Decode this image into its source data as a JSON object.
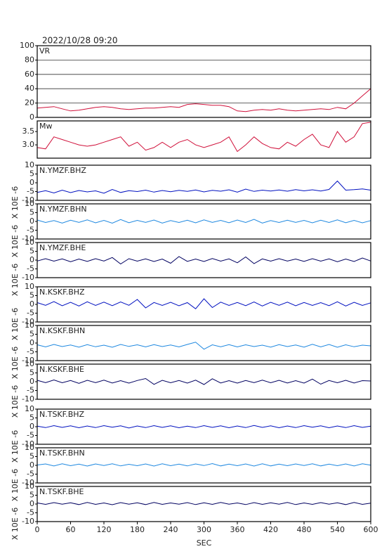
{
  "chart_data": [
    {
      "type": "line",
      "title": "2022/10/28 09:20",
      "xlim": [
        0,
        600
      ],
      "ylim": [
        0,
        100
      ],
      "yticks": [
        0,
        20,
        40,
        60,
        80,
        100
      ],
      "grid": true,
      "x": [
        0,
        15,
        30,
        45,
        60,
        75,
        90,
        105,
        120,
        135,
        150,
        165,
        180,
        195,
        210,
        225,
        240,
        255,
        270,
        285,
        300,
        315,
        330,
        345,
        360,
        375,
        390,
        405,
        420,
        435,
        450,
        465,
        480,
        495,
        510,
        525,
        540,
        555,
        570,
        585,
        600
      ],
      "series": [
        {
          "name": "VR",
          "color": "#d0103a",
          "values": [
            13,
            14,
            15,
            12,
            9,
            10,
            12,
            14,
            15,
            14,
            12,
            11,
            12,
            13,
            13,
            14,
            15,
            14,
            18,
            19,
            18,
            17,
            17,
            15,
            9,
            8,
            10,
            11,
            10,
            12,
            10,
            9,
            10,
            11,
            12,
            11,
            14,
            12,
            20,
            30,
            40
          ]
        }
      ]
    },
    {
      "type": "line",
      "xlim": [
        0,
        600
      ],
      "ylim": [
        2.5,
        3.9
      ],
      "yticks": [
        {
          "value": 3,
          "label": "3.0"
        },
        3.5
      ],
      "grid": false,
      "x": [
        0,
        15,
        30,
        45,
        60,
        75,
        90,
        105,
        120,
        135,
        150,
        165,
        180,
        195,
        210,
        225,
        240,
        255,
        270,
        285,
        300,
        315,
        330,
        345,
        360,
        375,
        390,
        405,
        420,
        435,
        450,
        465,
        480,
        495,
        510,
        525,
        540,
        555,
        570,
        585,
        600
      ],
      "series": [
        {
          "name": "Mw",
          "color": "#d0103a",
          "values": [
            2.9,
            2.85,
            3.3,
            3.2,
            3.1,
            3.0,
            2.95,
            3.0,
            3.1,
            3.2,
            3.3,
            2.95,
            3.1,
            2.8,
            2.9,
            3.1,
            2.9,
            3.1,
            3.2,
            3.0,
            2.9,
            3.0,
            3.1,
            3.3,
            2.75,
            3.0,
            3.3,
            3.05,
            2.9,
            2.85,
            3.1,
            2.95,
            3.2,
            3.4,
            3.0,
            2.9,
            3.5,
            3.1,
            3.3,
            3.8,
            3.85
          ]
        }
      ]
    },
    {
      "type": "line",
      "ylabel": "X 10E -6",
      "xlim": [
        0,
        600
      ],
      "ylim": [
        -10,
        10
      ],
      "yticks": [
        -10,
        -5,
        0,
        5,
        10
      ],
      "grid": false,
      "x": [
        0,
        15,
        30,
        45,
        60,
        75,
        90,
        105,
        120,
        135,
        150,
        165,
        180,
        195,
        210,
        225,
        240,
        255,
        270,
        285,
        300,
        315,
        330,
        345,
        360,
        375,
        390,
        405,
        420,
        435,
        450,
        465,
        480,
        495,
        510,
        525,
        540,
        555,
        570,
        585,
        600
      ],
      "series": [
        {
          "name": "N.YMZF.BHZ",
          "color": "#0010c0",
          "values": [
            -5.5,
            -4.5,
            -5.8,
            -4.2,
            -5.6,
            -4.4,
            -5.2,
            -4.6,
            -5.9,
            -3.8,
            -5.5,
            -4.5,
            -5.0,
            -4.2,
            -5.3,
            -4.4,
            -5.1,
            -4.3,
            -4.9,
            -4.1,
            -5.2,
            -4.3,
            -4.8,
            -4.0,
            -5.3,
            -3.6,
            -4.9,
            -4.2,
            -4.7,
            -4.1,
            -4.8,
            -3.9,
            -4.6,
            -4.0,
            -4.7,
            -3.8,
            1.0,
            -4.2,
            -3.9,
            -3.5,
            -4.2
          ]
        }
      ]
    },
    {
      "type": "line",
      "ylabel": "X 10E -6",
      "xlim": [
        0,
        600
      ],
      "ylim": [
        -10,
        10
      ],
      "yticks": [
        -10,
        -5,
        0,
        5,
        10
      ],
      "grid": false,
      "x": [
        0,
        15,
        30,
        45,
        60,
        75,
        90,
        105,
        120,
        135,
        150,
        165,
        180,
        195,
        210,
        225,
        240,
        255,
        270,
        285,
        300,
        315,
        330,
        345,
        360,
        375,
        390,
        405,
        420,
        435,
        450,
        465,
        480,
        495,
        510,
        525,
        540,
        555,
        570,
        585,
        600
      ],
      "series": [
        {
          "name": "N.YMZF.BHN",
          "color": "#1e88e0",
          "values": [
            0.8,
            -0.6,
            0.5,
            -0.9,
            0.7,
            -0.5,
            0.9,
            -0.8,
            0.6,
            -1.0,
            1.1,
            -0.7,
            0.6,
            -0.5,
            0.8,
            -0.9,
            0.5,
            -0.6,
            0.7,
            -0.8,
            0.9,
            -0.5,
            0.6,
            -0.7,
            0.8,
            -0.6,
            1.2,
            -0.9,
            0.5,
            -0.6,
            0.7,
            -0.5,
            0.6,
            -0.8,
            0.7,
            -0.6,
            0.9,
            -0.7,
            0.6,
            -0.8,
            0.5
          ]
        }
      ]
    },
    {
      "type": "line",
      "ylabel": "X 10E -6",
      "xlim": [
        0,
        600
      ],
      "ylim": [
        -10,
        10
      ],
      "yticks": [
        -10,
        -5,
        0,
        5,
        10
      ],
      "grid": false,
      "x": [
        0,
        15,
        30,
        45,
        60,
        75,
        90,
        105,
        120,
        135,
        150,
        165,
        180,
        195,
        210,
        225,
        240,
        255,
        270,
        285,
        300,
        315,
        330,
        345,
        360,
        375,
        390,
        405,
        420,
        435,
        450,
        465,
        480,
        495,
        510,
        525,
        540,
        555,
        570,
        585,
        600
      ],
      "series": [
        {
          "name": "N.YMZF.BHE",
          "color": "#000060",
          "values": [
            -0.5,
            0.8,
            -0.6,
            0.7,
            -0.9,
            0.6,
            -0.7,
            0.8,
            -0.5,
            1.5,
            -2.2,
            0.8,
            -0.6,
            0.7,
            -0.8,
            0.6,
            -1.8,
            2.0,
            -0.7,
            0.6,
            -0.8,
            0.9,
            -0.6,
            0.7,
            -1.5,
            1.8,
            -2.0,
            0.7,
            -0.6,
            0.8,
            -0.5,
            0.6,
            -0.7,
            0.8,
            -0.6,
            0.7,
            -0.9,
            0.6,
            -0.8,
            1.2,
            -0.5
          ]
        }
      ]
    },
    {
      "type": "line",
      "ylabel": "X 10E -6",
      "xlim": [
        0,
        600
      ],
      "ylim": [
        -10,
        10
      ],
      "yticks": [
        -10,
        -5,
        0,
        5,
        10
      ],
      "grid": false,
      "x": [
        0,
        15,
        30,
        45,
        60,
        75,
        90,
        105,
        120,
        135,
        150,
        165,
        180,
        195,
        210,
        225,
        240,
        255,
        270,
        285,
        300,
        315,
        330,
        345,
        360,
        375,
        390,
        405,
        420,
        435,
        450,
        465,
        480,
        495,
        510,
        525,
        540,
        555,
        570,
        585,
        600
      ],
      "series": [
        {
          "name": "N.KSKF.BHZ",
          "color": "#0010c0",
          "values": [
            1.0,
            -0.5,
            1.6,
            -0.8,
            1.2,
            -0.9,
            1.5,
            -0.6,
            1.3,
            -0.7,
            1.4,
            -0.5,
            2.8,
            -2.0,
            1.1,
            -0.6,
            1.2,
            -0.8,
            1.0,
            -2.5,
            3.2,
            -1.8,
            1.3,
            -0.6,
            1.1,
            -0.7,
            1.4,
            -0.9,
            1.2,
            -0.5,
            1.3,
            -0.8,
            1.1,
            -0.6,
            1.0,
            -0.7,
            1.5,
            -0.9,
            1.2,
            -0.6,
            0.9
          ]
        }
      ]
    },
    {
      "type": "line",
      "ylabel": "X 10E -6",
      "xlim": [
        0,
        600
      ],
      "ylim": [
        -10,
        10
      ],
      "yticks": [
        -10,
        -5,
        0,
        5,
        10
      ],
      "grid": false,
      "x": [
        0,
        15,
        30,
        45,
        60,
        75,
        90,
        105,
        120,
        135,
        150,
        165,
        180,
        195,
        210,
        225,
        240,
        255,
        270,
        285,
        300,
        315,
        330,
        345,
        360,
        375,
        390,
        405,
        420,
        435,
        450,
        465,
        480,
        495,
        510,
        525,
        540,
        555,
        570,
        585,
        600
      ],
      "series": [
        {
          "name": "N.KSKF.BHN",
          "color": "#1e88e0",
          "values": [
            -1.0,
            -2.2,
            -0.8,
            -2.0,
            -1.1,
            -2.3,
            -0.9,
            -2.1,
            -1.2,
            -2.4,
            -0.8,
            -1.9,
            -1.0,
            -2.2,
            -0.9,
            -2.0,
            -1.1,
            -2.2,
            -0.8,
            0.5,
            -3.5,
            -1.0,
            -2.1,
            -0.9,
            -2.2,
            -1.0,
            -2.0,
            -1.2,
            -2.3,
            -0.9,
            -2.0,
            -1.1,
            -2.3,
            -0.7,
            -2.2,
            -0.8,
            -2.4,
            -1.0,
            -2.1,
            -1.2,
            -1.6
          ]
        }
      ]
    },
    {
      "type": "line",
      "ylabel": "X 10E -6",
      "xlim": [
        0,
        600
      ],
      "ylim": [
        -10,
        10
      ],
      "yticks": [
        -10,
        -5,
        0,
        5,
        10
      ],
      "grid": false,
      "x": [
        0,
        15,
        30,
        45,
        60,
        75,
        90,
        105,
        120,
        135,
        150,
        165,
        180,
        195,
        210,
        225,
        240,
        255,
        270,
        285,
        300,
        315,
        330,
        345,
        360,
        375,
        390,
        405,
        420,
        435,
        450,
        465,
        480,
        495,
        510,
        525,
        540,
        555,
        570,
        585,
        600
      ],
      "series": [
        {
          "name": "N.KSKF.BHE",
          "color": "#000060",
          "values": [
            0.8,
            -0.5,
            1.0,
            -0.6,
            0.7,
            -0.9,
            0.8,
            -0.5,
            0.9,
            -0.7,
            0.6,
            -0.8,
            0.7,
            1.8,
            -1.5,
            0.8,
            -0.6,
            0.7,
            -0.8,
            0.9,
            -1.6,
            1.7,
            -0.7,
            0.6,
            -0.8,
            0.7,
            -0.5,
            0.9,
            -0.6,
            0.8,
            -0.7,
            0.6,
            -0.8,
            1.5,
            -1.4,
            0.7,
            -0.6,
            0.8,
            -0.7,
            0.6,
            0.4
          ]
        }
      ]
    },
    {
      "type": "line",
      "ylabel": "X 10E -6",
      "xlim": [
        0,
        600
      ],
      "ylim": [
        -10,
        10
      ],
      "yticks": [
        -10,
        -5,
        0,
        5,
        10
      ],
      "grid": false,
      "x": [
        0,
        15,
        30,
        45,
        60,
        75,
        90,
        105,
        120,
        135,
        150,
        165,
        180,
        195,
        210,
        225,
        240,
        255,
        270,
        285,
        300,
        315,
        330,
        345,
        360,
        375,
        390,
        405,
        420,
        435,
        450,
        465,
        480,
        495,
        510,
        525,
        540,
        555,
        570,
        585,
        600
      ],
      "series": [
        {
          "name": "N.TSKF.BHZ",
          "color": "#0010c0",
          "values": [
            0.3,
            -0.5,
            0.6,
            -0.4,
            0.5,
            -0.6,
            0.4,
            -0.5,
            0.6,
            -0.3,
            0.5,
            -0.7,
            0.4,
            -0.5,
            0.6,
            -0.4,
            0.5,
            -0.6,
            0.3,
            -0.5,
            0.6,
            -0.4,
            0.5,
            -0.6,
            0.4,
            -0.5,
            0.7,
            -0.4,
            0.5,
            -0.6,
            0.4,
            -0.5,
            0.6,
            -0.3,
            0.5,
            -0.6,
            0.4,
            -0.5,
            0.6,
            -0.4,
            0.3
          ]
        }
      ]
    },
    {
      "type": "line",
      "ylabel": "X 10E -6",
      "xlim": [
        0,
        600
      ],
      "ylim": [
        -10,
        10
      ],
      "yticks": [
        -10,
        -5,
        0,
        5,
        10
      ],
      "grid": false,
      "x": [
        0,
        15,
        30,
        45,
        60,
        75,
        90,
        105,
        120,
        135,
        150,
        165,
        180,
        195,
        210,
        225,
        240,
        255,
        270,
        285,
        300,
        315,
        330,
        345,
        360,
        375,
        390,
        405,
        420,
        435,
        450,
        465,
        480,
        495,
        510,
        525,
        540,
        555,
        570,
        585,
        600
      ],
      "series": [
        {
          "name": "N.TSKF.BHN",
          "color": "#1e88e0",
          "values": [
            0.2,
            0.8,
            -0.3,
            0.9,
            -0.2,
            0.7,
            -0.4,
            0.8,
            -0.1,
            0.9,
            -0.3,
            0.6,
            -0.2,
            0.8,
            -0.4,
            0.9,
            -0.2,
            0.7,
            -0.3,
            0.8,
            -0.1,
            1.0,
            -0.3,
            0.7,
            -0.2,
            0.8,
            -0.4,
            0.9,
            -0.3,
            0.7,
            -0.2,
            0.8,
            -0.1,
            0.9,
            -0.3,
            0.7,
            -0.2,
            0.8,
            -0.3,
            0.9,
            0.1
          ]
        }
      ]
    },
    {
      "type": "line",
      "ylabel": "X 10E -6",
      "xlabel": "SEC",
      "xlim": [
        0,
        600
      ],
      "xticks": [
        0,
        60,
        120,
        180,
        240,
        300,
        360,
        420,
        480,
        540,
        600
      ],
      "ylim": [
        -10,
        10
      ],
      "yticks": [
        -10,
        -5,
        0,
        5,
        10
      ],
      "grid": false,
      "x": [
        0,
        15,
        30,
        45,
        60,
        75,
        90,
        105,
        120,
        135,
        150,
        165,
        180,
        195,
        210,
        225,
        240,
        255,
        270,
        285,
        300,
        315,
        330,
        345,
        360,
        375,
        390,
        405,
        420,
        435,
        450,
        465,
        480,
        495,
        510,
        525,
        540,
        555,
        570,
        585,
        600
      ],
      "series": [
        {
          "name": "N.TSKF.BHE",
          "color": "#000060",
          "values": [
            0.6,
            -0.2,
            0.8,
            -0.1,
            0.7,
            -0.3,
            0.9,
            -0.2,
            0.6,
            -0.4,
            0.8,
            -0.1,
            0.7,
            -0.3,
            0.9,
            -0.2,
            0.6,
            -0.1,
            0.8,
            -0.3,
            0.7,
            -0.2,
            0.9,
            -0.1,
            0.6,
            -0.3,
            0.8,
            -0.2,
            0.7,
            -0.1,
            0.9,
            -0.3,
            0.6,
            -0.2,
            0.8,
            -0.1,
            0.7,
            -0.3,
            0.9,
            -0.2,
            0.5
          ]
        }
      ]
    }
  ]
}
